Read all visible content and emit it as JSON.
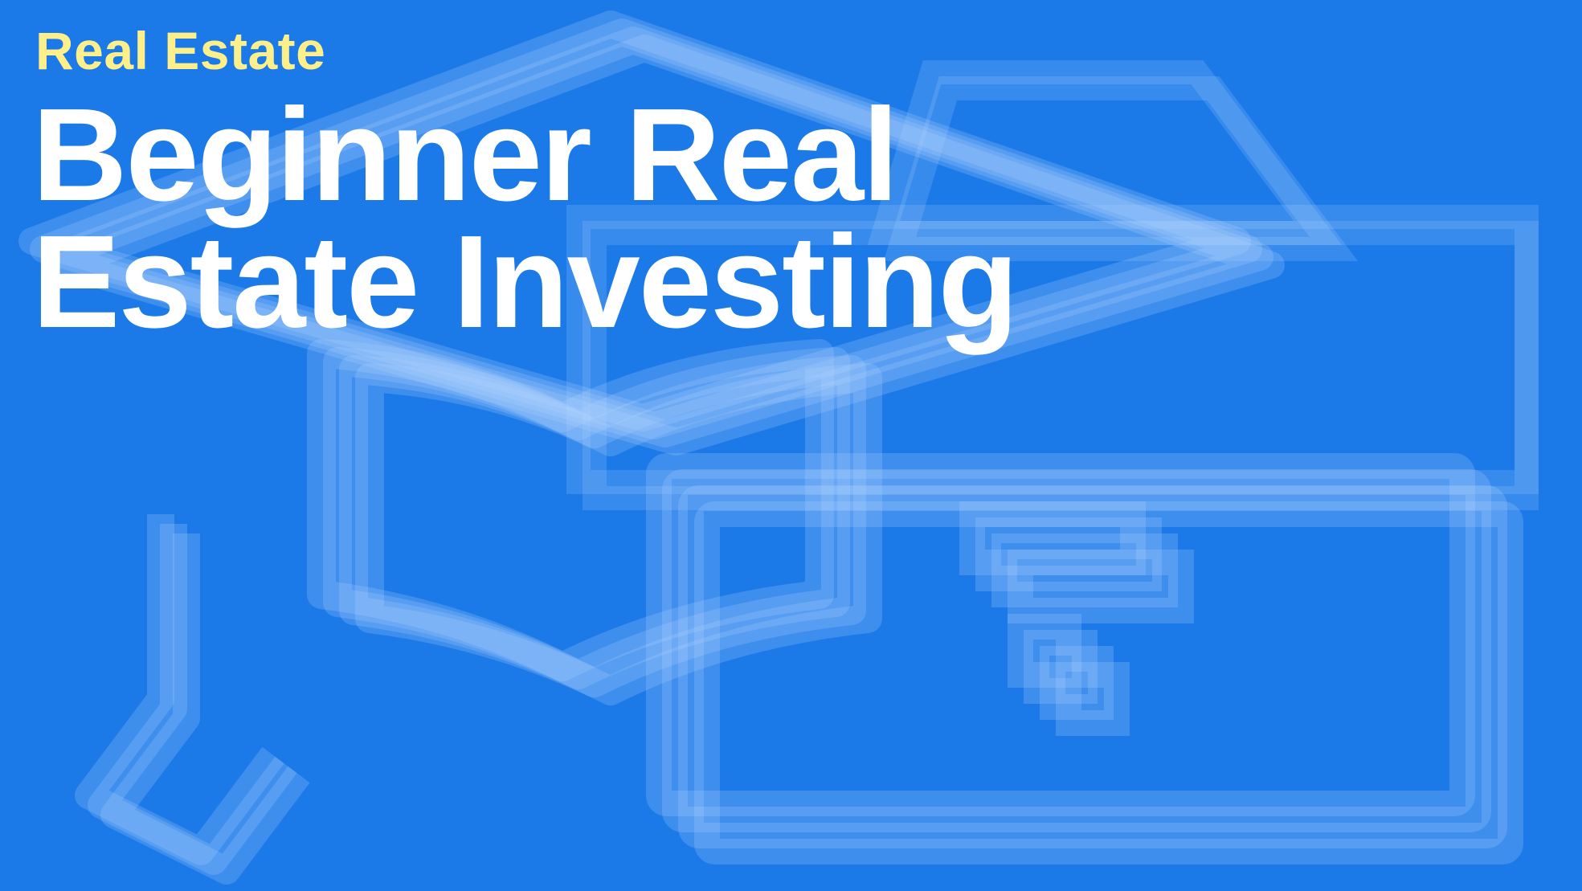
{
  "banner": {
    "category": "Real Estate",
    "title_line_1": "Beginner Real",
    "title_line_2": "Estate Investing",
    "colors": {
      "background": "#1b7ae8",
      "category_text": "#fdf08a",
      "title_text": "#ffffff",
      "illustration": "#9fc8ff"
    },
    "illustration_icons": [
      "graduation-cap-icon",
      "book-icon",
      "wallet-icon"
    ]
  }
}
